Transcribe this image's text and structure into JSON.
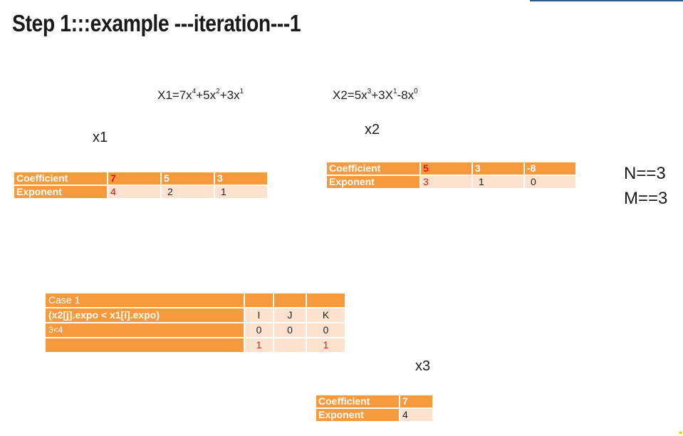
{
  "slide": {
    "title": "Step 1:::example ---iteration---1",
    "eq1": {
      "lead": "X1=7x",
      "e1": "4",
      "m1": "+5x",
      "e2": "2",
      "m2": "+3x",
      "e3": "1"
    },
    "eq2": {
      "lead": "X2=5x",
      "e1": "3",
      "m1": "+3X",
      "e2": "1",
      "m2": "-8x",
      "e3": "0"
    },
    "x1_label": "x1",
    "x2_label": "x2",
    "x3_label": "x3",
    "n_label": "N==3",
    "m_label": "M==3"
  },
  "x1_table": {
    "row1": {
      "head": "Coefficient",
      "cells": [
        "7",
        "5",
        "3"
      ]
    },
    "row2": {
      "head": "Exponent",
      "cells": [
        "4",
        "2",
        "1"
      ]
    }
  },
  "x2_table": {
    "row1": {
      "head": "Coefficient",
      "cells": [
        "5",
        "3",
        "-8"
      ]
    },
    "row2": {
      "head": "Exponent",
      "cells": [
        "3",
        "1",
        "0"
      ]
    }
  },
  "x3_table": {
    "row1": {
      "head": "Coefficient",
      "cells": [
        "7"
      ]
    },
    "row2": {
      "head": "Exponent",
      "cells": [
        "4"
      ]
    }
  },
  "case_table": {
    "title": "Case 1",
    "condition": "(x2[j].expo < x1[i].expo)",
    "cols": [
      "I",
      "J",
      "K"
    ],
    "compare": "3<4",
    "values_before": [
      "0",
      "0",
      "0"
    ],
    "values_after": [
      "1",
      "",
      "1"
    ]
  },
  "colors": {
    "header": "#f79a3d",
    "cell": "#fde3cf",
    "highlight": "#e8141a"
  }
}
